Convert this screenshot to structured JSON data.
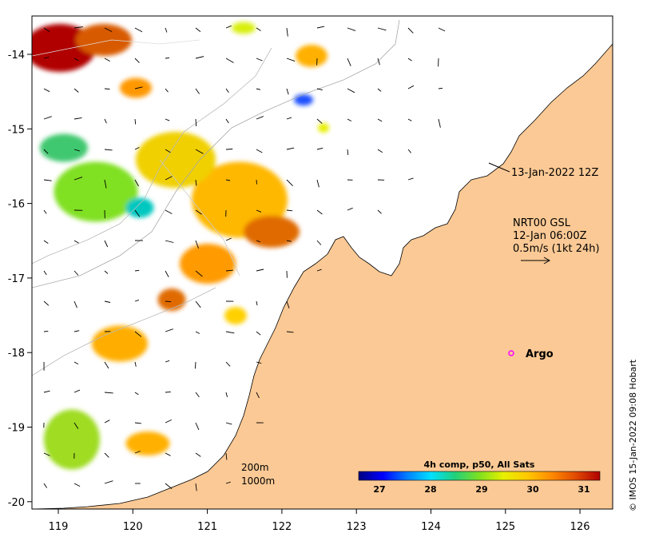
{
  "map": {
    "x_ticks": [
      "119",
      "120",
      "121",
      "122",
      "123",
      "124",
      "125",
      "126"
    ],
    "y_ticks": [
      "-14",
      "-15",
      "-16",
      "-17",
      "-18",
      "-19",
      "-20"
    ],
    "land_color": "#fbc995",
    "sea_color": "#ffffff"
  },
  "annotations": {
    "track_time": "13-Jan-2022 12Z",
    "current_product": "NRT00 GSL",
    "current_time": "12-Jan 06:00Z",
    "vector_scale": "0.5m/s (1kt 24h)",
    "argo_label": "Argo",
    "depth_200": "200m",
    "depth_1000": "1000m"
  },
  "colorbar": {
    "title": "4h comp, p50, All Sats",
    "ticks": [
      "27",
      "28",
      "29",
      "30",
      "31"
    ],
    "colors": [
      "#00007f",
      "#0000ff",
      "#007fff",
      "#00e0ff",
      "#22d07a",
      "#7fe020",
      "#e8f000",
      "#ffc800",
      "#ff8a00",
      "#e04a00",
      "#b00000"
    ]
  },
  "credit": "© IMOS 15-Jan-2022 09:08 Hobart",
  "sst_patches": [
    {
      "x": 75,
      "y": 60,
      "w": 90,
      "h": 60,
      "c": "#b00000"
    },
    {
      "x": 130,
      "y": 50,
      "w": 70,
      "h": 40,
      "c": "#d85a00"
    },
    {
      "x": 170,
      "y": 110,
      "w": 40,
      "h": 25,
      "c": "#ff9800"
    },
    {
      "x": 305,
      "y": 35,
      "w": 30,
      "h": 15,
      "c": "#d8ef10"
    },
    {
      "x": 390,
      "y": 70,
      "w": 40,
      "h": 28,
      "c": "#ffb000"
    },
    {
      "x": 380,
      "y": 125,
      "w": 24,
      "h": 14,
      "c": "#1e50ff"
    },
    {
      "x": 405,
      "y": 160,
      "w": 14,
      "h": 12,
      "c": "#e8f000"
    },
    {
      "x": 120,
      "y": 240,
      "w": 105,
      "h": 75,
      "c": "#80e020"
    },
    {
      "x": 300,
      "y": 250,
      "w": 120,
      "h": 95,
      "c": "#ffb800"
    },
    {
      "x": 220,
      "y": 200,
      "w": 100,
      "h": 70,
      "c": "#f0d000"
    },
    {
      "x": 175,
      "y": 260,
      "w": 35,
      "h": 25,
      "c": "#00c8c0"
    },
    {
      "x": 340,
      "y": 290,
      "w": 70,
      "h": 40,
      "c": "#e06a00"
    },
    {
      "x": 260,
      "y": 330,
      "w": 70,
      "h": 50,
      "c": "#ff9a00"
    },
    {
      "x": 150,
      "y": 430,
      "w": 70,
      "h": 45,
      "c": "#ffae00"
    },
    {
      "x": 90,
      "y": 550,
      "w": 70,
      "h": 75,
      "c": "#9fdc20"
    },
    {
      "x": 185,
      "y": 555,
      "w": 55,
      "h": 30,
      "c": "#ffb000"
    },
    {
      "x": 80,
      "y": 185,
      "w": 60,
      "h": 35,
      "c": "#40c870"
    },
    {
      "x": 215,
      "y": 375,
      "w": 35,
      "h": 28,
      "c": "#e06a00"
    },
    {
      "x": 295,
      "y": 395,
      "w": 28,
      "h": 22,
      "c": "#ffd000"
    }
  ]
}
